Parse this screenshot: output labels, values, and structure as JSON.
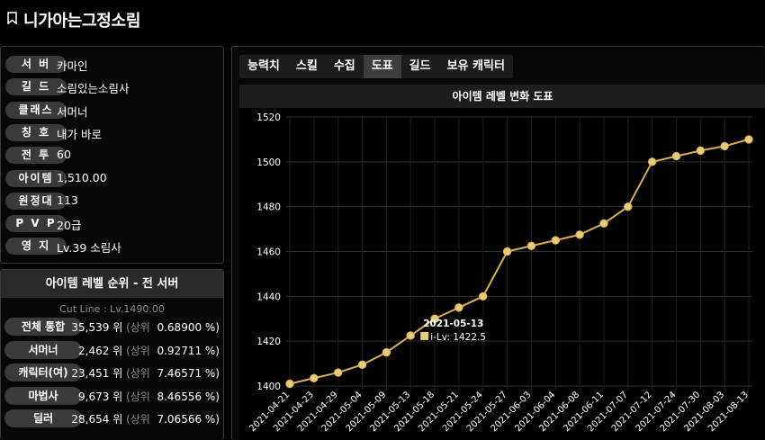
{
  "header": {
    "title": "니가아는그정소림"
  },
  "profile": {
    "rows": [
      {
        "label": "서 버",
        "value": "카마인"
      },
      {
        "label": "길 드",
        "value": "소림있는소림사"
      },
      {
        "label": "클래스",
        "value": "서머너"
      },
      {
        "label": "칭 호",
        "value": "내가 바로"
      },
      {
        "label": "전 투",
        "value": "60"
      },
      {
        "label": "아이템",
        "value": "1,510.00"
      },
      {
        "label": "원정대",
        "value": "113"
      },
      {
        "label": "P V P",
        "value": "20급"
      },
      {
        "label": "영 지",
        "value": "Lv.39 소림사"
      }
    ]
  },
  "ranking": {
    "title": "아이템 레벨 순위 - 전 서버",
    "cutline": "Cut Line : Lv.1490.00",
    "rows": [
      {
        "label": "전체 통합",
        "rank": "35,539 위",
        "top_label": "(상위",
        "pct": "0.68900 %)"
      },
      {
        "label": "서머너",
        "rank": "2,462 위",
        "top_label": "(상위",
        "pct": "0.92711 %)"
      },
      {
        "label": "캐릭터(여)",
        "rank": "23,451 위",
        "top_label": "(상위",
        "pct": "7.46571 %)"
      },
      {
        "label": "마법사",
        "rank": "9,673 위",
        "top_label": "(상위",
        "pct": "8.46556 %)"
      },
      {
        "label": "딜러",
        "rank": "28,654 위",
        "top_label": "(상위",
        "pct": "7.06566 %)"
      }
    ]
  },
  "tabs": [
    {
      "label": "능력치",
      "active": false
    },
    {
      "label": "스킬",
      "active": false
    },
    {
      "label": "수집",
      "active": false
    },
    {
      "label": "도표",
      "active": true
    },
    {
      "label": "길드",
      "active": false
    },
    {
      "label": "보유 캐릭터",
      "active": false
    }
  ],
  "chart_data": {
    "type": "line",
    "title": "아이템 레벨 변화 도표",
    "categories": [
      "2021-04-21",
      "2021-04-23",
      "2021-04-29",
      "2021-05-04",
      "2021-05-09",
      "2021-05-13",
      "2021-05-18",
      "2021-05-21",
      "2021-05-24",
      "2021-05-27",
      "2021-06-03",
      "2021-06-04",
      "2021-06-08",
      "2021-06-11",
      "2021-07-07",
      "2021-07-12",
      "2021-07-24",
      "2021-07-30",
      "2021-08-03",
      "2021-08-13"
    ],
    "series": [
      {
        "values": [
          1401,
          1403.5,
          1406,
          1409.5,
          1415,
          1422.5,
          1430,
          1435,
          1440,
          1460,
          1462.5,
          1465,
          1467.5,
          1472.5,
          1480,
          1500,
          1502.5,
          1505,
          1507,
          1510
        ]
      }
    ],
    "ylim": [
      1400,
      1520
    ],
    "yticks": [
      1400,
      1420,
      1440,
      1460,
      1480,
      1500,
      1520
    ],
    "grid": true,
    "line_color": "#d9b04a",
    "point_color": "#e8cc78",
    "tooltip": {
      "date": "2021-05-13",
      "label": "i-Lv: 1422.5",
      "index": 5
    }
  }
}
